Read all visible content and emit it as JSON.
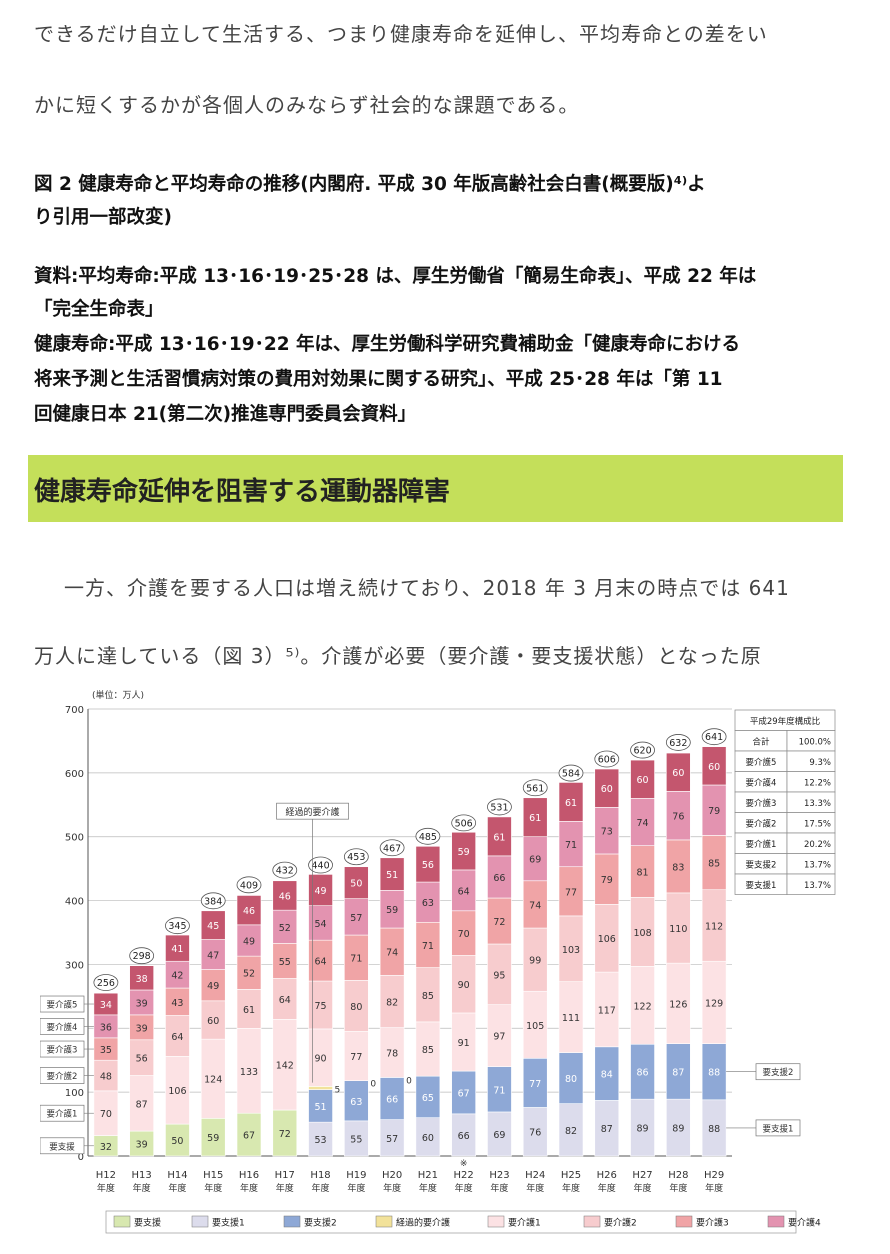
{
  "body_lines": [
    "できるだけ自立して生活する、つまり健康寿命を延伸し、平均寿命との差をい",
    "かに短くするかが各個人のみならず社会的な課題である。"
  ],
  "figure2": {
    "caption_line1": "図 2  健康寿命と平均寿命の推移(内閣府. 平成 30 年版高齢社会白書(概要版)⁴⁾よ",
    "caption_line2": "り引用一部改変)",
    "source_lines": [
      "資料:平均寿命:平成 13･16･19･25･28 は、厚生労働省「簡易生命表」、平成 22 年は",
      "「完全生命表」",
      "健康寿命:平成 13･16･19･22 年は、厚生労働科学研究費補助金「健康寿命における",
      "将来予測と生活習慣病対策の費用対効果に関する研究」、平成 25･28 年は「第 11",
      "回健康日本 21(第二次)推進専門委員会資料」"
    ]
  },
  "section_heading": "健康寿命延伸を阻害する運動器障害",
  "para2_lines": [
    "一方、介護を要する人口は増え続けており、2018 年 3 月末の時点では 641",
    "万人に達している（図 3）⁵⁾。介護が必要（要介護・要支援状態）となった原"
  ],
  "colors": {
    "band": "#c4df5a",
    "要支援": "#d8e8b0",
    "要支援1": "#dcdcec",
    "要支援2": "#8ea8d6",
    "経過的要介護": "#f2e29a",
    "要介護1": "#fce2e4",
    "要介護2": "#f7ccce",
    "要介護3": "#f0a4a6",
    "要介護4": "#e393b0",
    "要介護5": "#c4566e"
  },
  "chart_data": {
    "type": "bar",
    "stacked": true,
    "unit_label": "(単位：万人)",
    "ylim": [
      0,
      700
    ],
    "yticks": [
      0,
      100,
      200,
      300,
      400,
      500,
      600,
      700
    ],
    "categories": [
      "H12",
      "H13",
      "H14",
      "H15",
      "H16",
      "H17",
      "H18",
      "H19",
      "H20",
      "H21",
      "H22",
      "H23",
      "H24",
      "H25",
      "H26",
      "H27",
      "H28",
      "H29"
    ],
    "category_suffix": "年度",
    "note_mark": "※",
    "note_index": 10,
    "totals": [
      256,
      298,
      345,
      384,
      409,
      432,
      440,
      453,
      467,
      485,
      506,
      531,
      561,
      584,
      606,
      620,
      632,
      641
    ],
    "series": [
      {
        "name": "要支援",
        "values": [
          32,
          39,
          50,
          59,
          67,
          72,
          null,
          null,
          null,
          null,
          null,
          null,
          null,
          null,
          null,
          null,
          null,
          null
        ]
      },
      {
        "name": "要支援1",
        "values": [
          null,
          null,
          null,
          null,
          null,
          null,
          53,
          55,
          57,
          60,
          66,
          69,
          76,
          82,
          87,
          89,
          89,
          88
        ]
      },
      {
        "name": "要支援2",
        "values": [
          null,
          null,
          null,
          null,
          null,
          null,
          51,
          63,
          66,
          65,
          67,
          71,
          77,
          80,
          84,
          86,
          87,
          88
        ]
      },
      {
        "name": "経過的要介護",
        "values": [
          null,
          null,
          null,
          null,
          null,
          null,
          5,
          0,
          0,
          null,
          null,
          null,
          null,
          null,
          null,
          null,
          null,
          null
        ]
      },
      {
        "name": "要介護1",
        "values": [
          70,
          87,
          106,
          124,
          133,
          142,
          90,
          77,
          78,
          85,
          91,
          97,
          105,
          111,
          117,
          122,
          126,
          129
        ]
      },
      {
        "name": "要介護2",
        "values": [
          48,
          56,
          64,
          60,
          61,
          64,
          75,
          80,
          82,
          85,
          90,
          95,
          99,
          103,
          106,
          108,
          110,
          112
        ]
      },
      {
        "name": "要介護3",
        "values": [
          35,
          39,
          43,
          49,
          52,
          55,
          64,
          71,
          74,
          71,
          70,
          72,
          74,
          77,
          79,
          81,
          83,
          85
        ]
      },
      {
        "name": "要介護4",
        "values": [
          36,
          39,
          42,
          47,
          49,
          52,
          54,
          57,
          59,
          63,
          64,
          66,
          69,
          71,
          73,
          74,
          76,
          79
        ]
      },
      {
        "name": "要介護5",
        "values": [
          34,
          38,
          41,
          45,
          46,
          46,
          49,
          50,
          51,
          56,
          59,
          61,
          61,
          61,
          60,
          60,
          60,
          60
        ]
      }
    ],
    "left_labels": [
      "要介護5",
      "要介護4",
      "要介護3",
      "要介護2",
      "要介護1",
      "要支援"
    ],
    "right_labels": [
      "要支援2",
      "要支援1"
    ],
    "annotation": "経過的要介護",
    "composition_table": {
      "title": "平成29年度構成比",
      "rows": [
        [
          "合計",
          "100.0%"
        ],
        [
          "要介護5",
          "9.3%"
        ],
        [
          "要介護4",
          "12.2%"
        ],
        [
          "要介護3",
          "13.3%"
        ],
        [
          "要介護2",
          "17.5%"
        ],
        [
          "要介護1",
          "20.2%"
        ],
        [
          "要支援2",
          "13.7%"
        ],
        [
          "要支援1",
          "13.7%"
        ]
      ]
    },
    "legend": [
      "要支援",
      "要支援1",
      "要支援2",
      "経過的要介護",
      "要介護1",
      "要介護2",
      "要介護3",
      "要介護4",
      "要介護5"
    ]
  }
}
